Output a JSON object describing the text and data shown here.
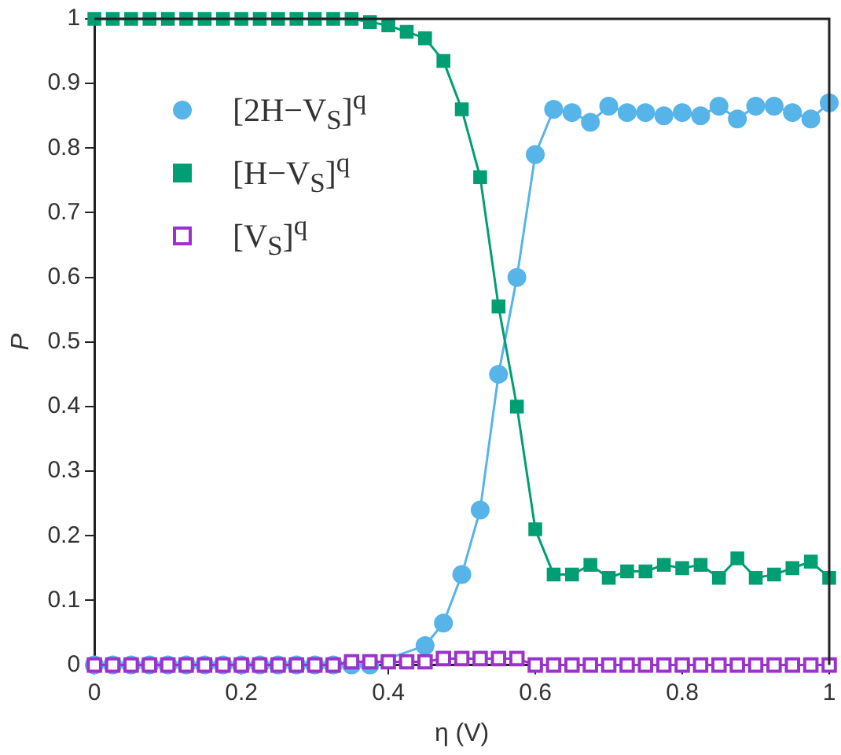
{
  "chart_data": {
    "type": "line",
    "xlabel": "η (V)",
    "ylabel": "P",
    "x": [
      0,
      0.025,
      0.05,
      0.075,
      0.1,
      0.125,
      0.15,
      0.175,
      0.2,
      0.225,
      0.25,
      0.275,
      0.3,
      0.325,
      0.35,
      0.375,
      0.4,
      0.425,
      0.45,
      0.475,
      0.5,
      0.525,
      0.55,
      0.575,
      0.6,
      0.625,
      0.65,
      0.675,
      0.7,
      0.725,
      0.75,
      0.775,
      0.8,
      0.825,
      0.85,
      0.875,
      0.9,
      0.925,
      0.95,
      0.975,
      1
    ],
    "series": [
      {
        "name": "[2H−V$_{S}$]$^{q}$",
        "color": "#56b4e9",
        "marker": "circle",
        "values": [
          0,
          0,
          0,
          0,
          0,
          0,
          0,
          0,
          0,
          0,
          0,
          0,
          0,
          0,
          0,
          0,
          null,
          null,
          0.03,
          0.065,
          0.14,
          0.24,
          0.45,
          0.6,
          0.79,
          0.86,
          0.855,
          0.84,
          0.865,
          0.855,
          0.855,
          0.85,
          0.855,
          0.85,
          0.865,
          0.845,
          0.865,
          0.865,
          0.855,
          0.845,
          0.87
        ]
      },
      {
        "name": "[H−V$_{S}$]$^{q}$",
        "color": "#009e73",
        "marker": "square",
        "values": [
          1,
          1,
          1,
          1,
          1,
          1,
          1,
          1,
          1,
          1,
          1,
          1,
          1,
          1,
          1,
          0.995,
          0.99,
          0.98,
          0.97,
          0.935,
          0.86,
          0.755,
          0.555,
          0.4,
          0.21,
          0.14,
          0.14,
          0.155,
          0.135,
          0.145,
          0.145,
          0.155,
          0.15,
          0.155,
          0.135,
          0.165,
          0.135,
          0.14,
          0.15,
          0.16,
          0.135
        ]
      },
      {
        "name": "[V$_{S}$]$^{q}$",
        "color": "#9933cc",
        "marker": "square",
        "values": [
          0,
          0,
          0,
          0,
          0,
          0,
          0,
          0,
          0,
          0,
          0,
          0,
          0,
          0,
          0.005,
          0.005,
          0.005,
          0.005,
          0.005,
          0.01,
          0.01,
          0.01,
          0.01,
          0.01,
          0,
          0,
          0,
          0,
          0,
          0,
          0,
          0,
          0,
          0,
          0,
          0,
          0,
          0,
          0,
          0,
          0
        ]
      }
    ],
    "xlim": [
      0,
      1
    ],
    "xticks": [
      0,
      0.2,
      0.4,
      0.6,
      0.8,
      1
    ],
    "ylim": [
      0,
      1
    ],
    "yticks": [
      0,
      0.1,
      0.2,
      0.3,
      0.4,
      0.5,
      0.6,
      0.7,
      0.8,
      0.9,
      1
    ],
    "grid": false,
    "legend": "top left",
    "line_style": "solid"
  }
}
